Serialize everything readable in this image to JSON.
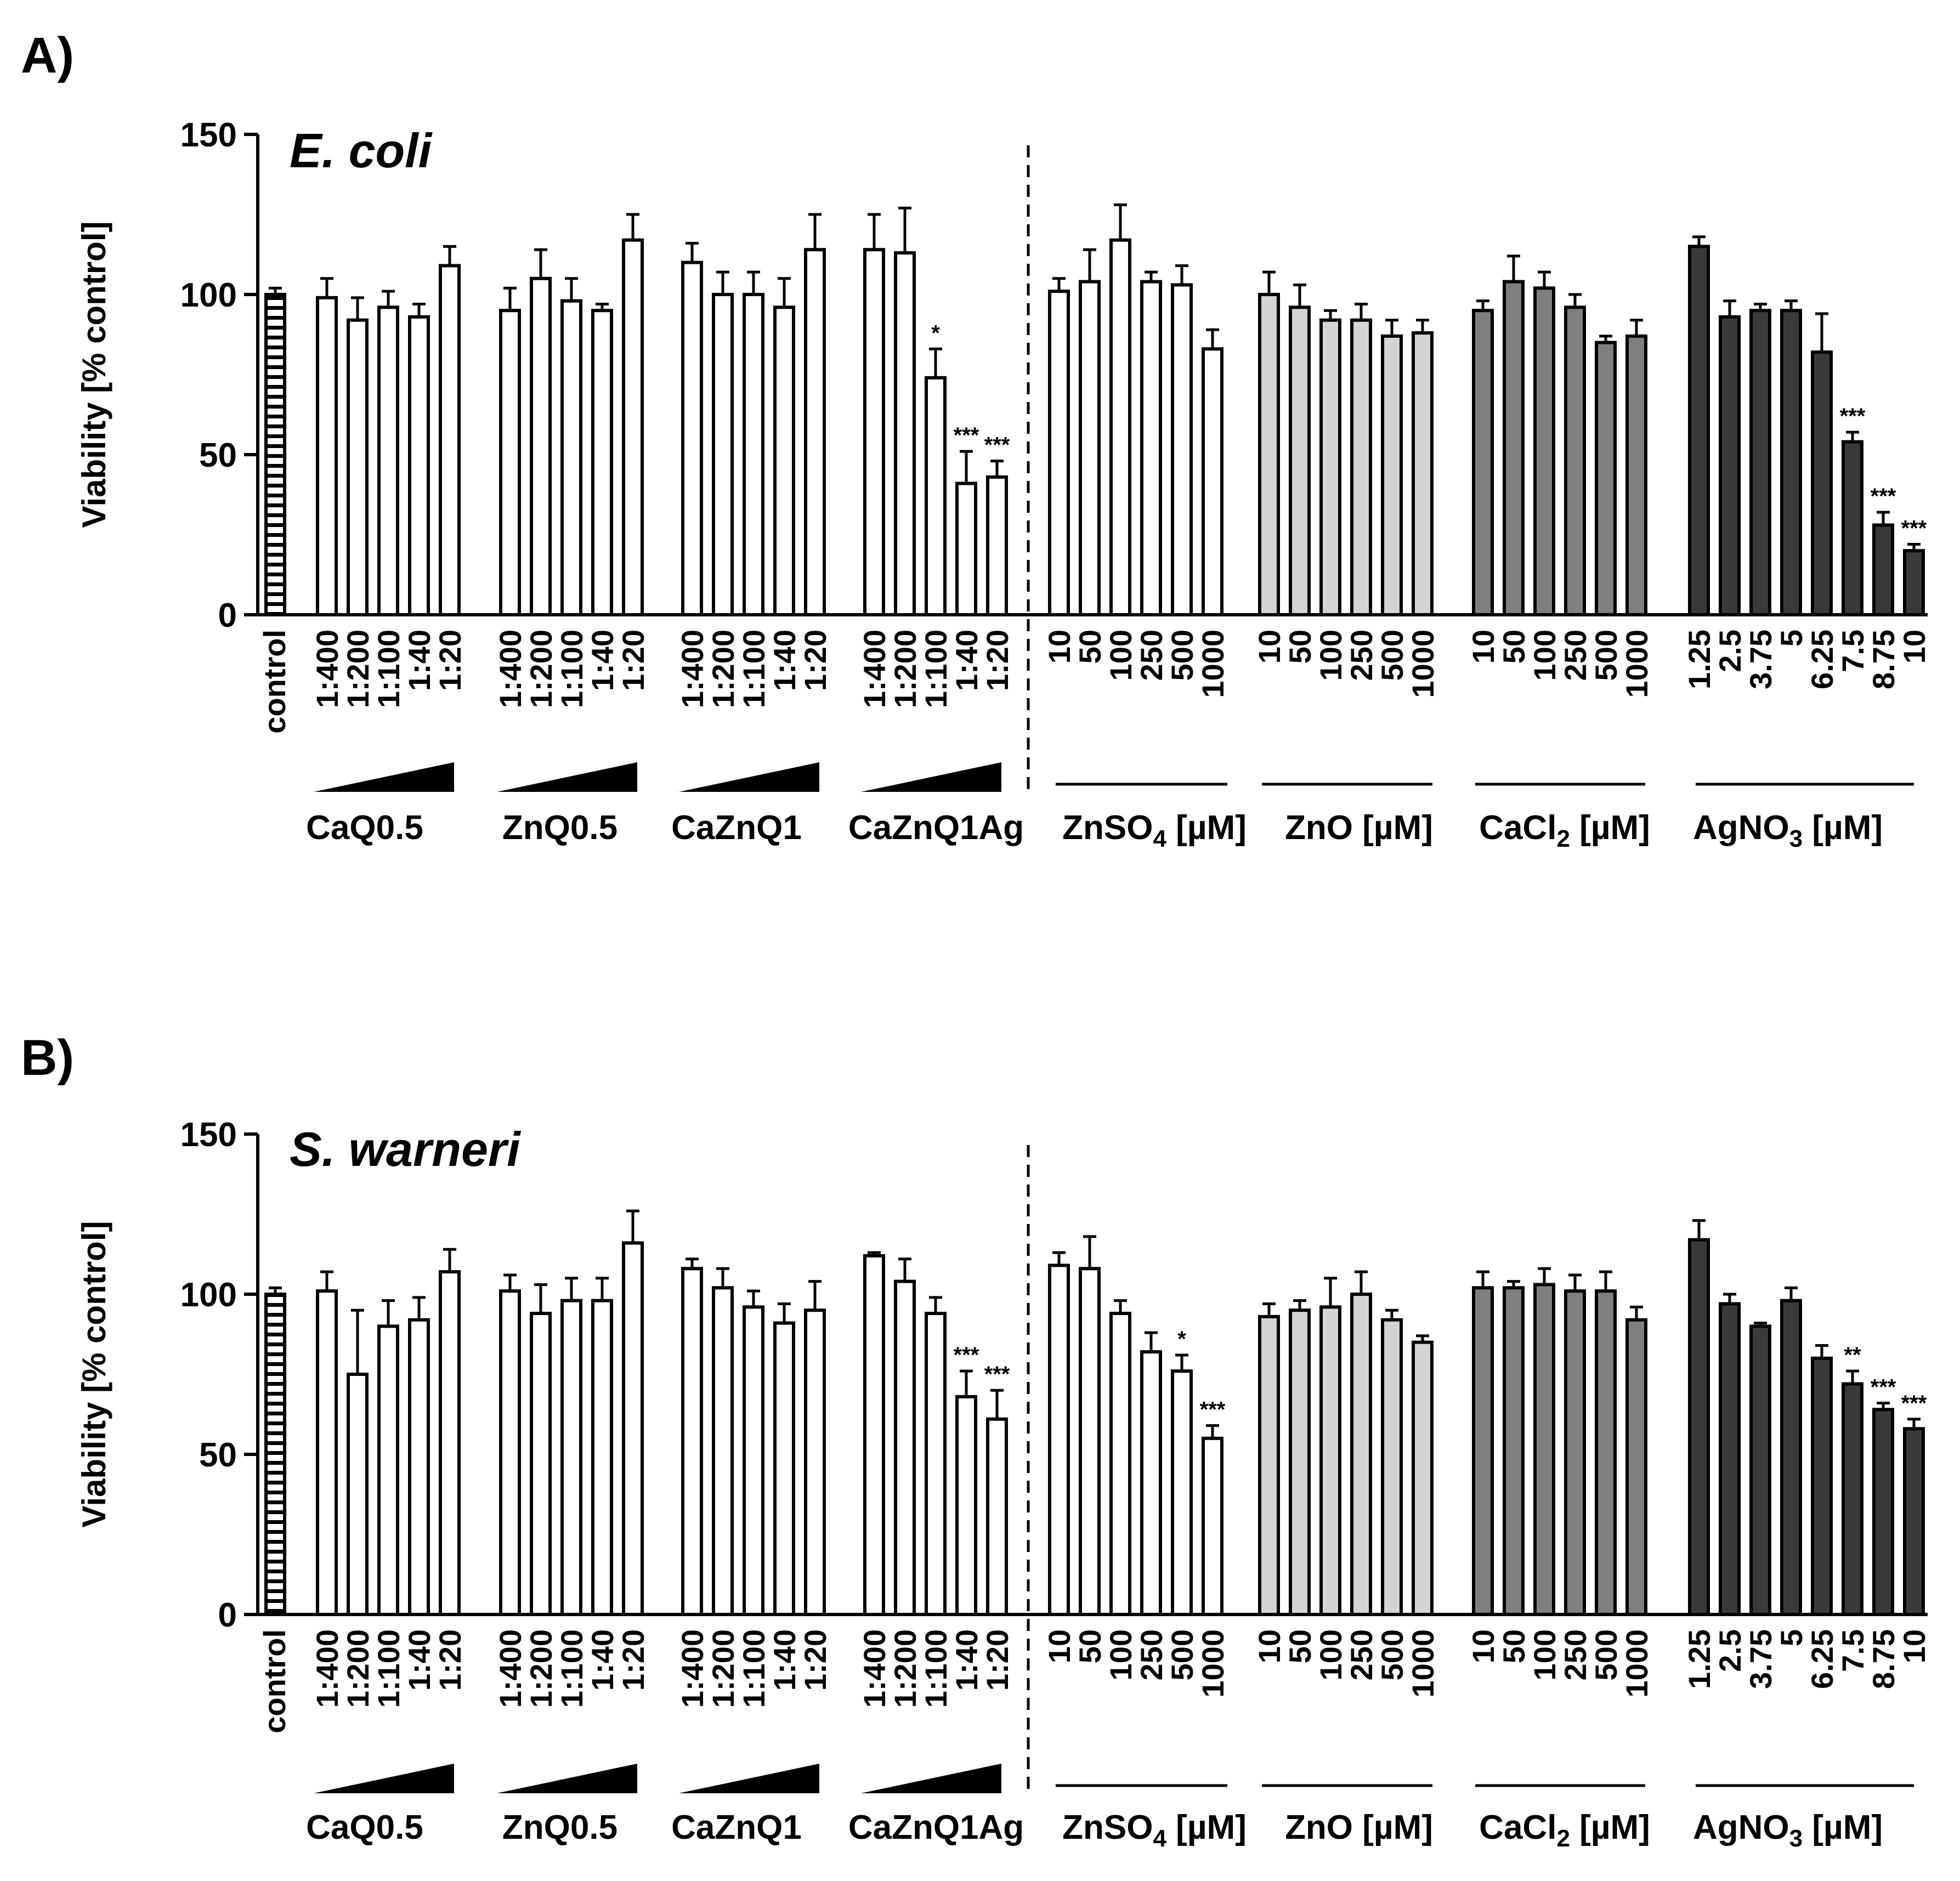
{
  "figure": {
    "panels": [
      "A)",
      "B)"
    ]
  },
  "colors": {
    "white": "#ffffff",
    "light": "#d4d4d4",
    "mid": "#7f7f7f",
    "dark": "#3a3a3a",
    "ink": "#000000"
  },
  "chart_data": [
    {
      "type": "bar",
      "panel": "A)",
      "title": "E. coli",
      "ylabel": "Viability [% control]",
      "xlabel": "",
      "ylim": [
        0,
        150
      ],
      "yticks": [
        0,
        50,
        100,
        150
      ],
      "control": {
        "label": "control",
        "value": 100,
        "error": 2
      },
      "groups": [
        {
          "name": "CaQ0.5",
          "sub": "",
          "color": "white",
          "indicator": "wedge",
          "labels": [
            "1:400",
            "1:200",
            "1:100",
            "1:40",
            "1:20"
          ],
          "values": [
            99,
            92,
            96,
            93,
            109
          ],
          "errors": [
            6,
            7,
            5,
            4,
            6
          ],
          "sig": [
            "",
            "",
            "",
            "",
            ""
          ]
        },
        {
          "name": "ZnQ0.5",
          "sub": "",
          "color": "white",
          "indicator": "wedge",
          "labels": [
            "1:400",
            "1:200",
            "1:100",
            "1:40",
            "1:20"
          ],
          "values": [
            95,
            105,
            98,
            95,
            117
          ],
          "errors": [
            7,
            9,
            7,
            2,
            8
          ],
          "sig": [
            "",
            "",
            "",
            "",
            ""
          ]
        },
        {
          "name": "CaZnQ1",
          "sub": "",
          "color": "white",
          "indicator": "wedge",
          "labels": [
            "1:400",
            "1:200",
            "1:100",
            "1:40",
            "1:20"
          ],
          "values": [
            110,
            100,
            100,
            96,
            114
          ],
          "errors": [
            6,
            7,
            7,
            9,
            11
          ],
          "sig": [
            "",
            "",
            "",
            "",
            ""
          ]
        },
        {
          "name": "CaZnQ1Ag",
          "sub": "",
          "color": "white",
          "indicator": "wedge",
          "labels": [
            "1:400",
            "1:200",
            "1:100",
            "1:40",
            "1:20"
          ],
          "values": [
            114,
            113,
            74,
            41,
            43
          ],
          "errors": [
            11,
            14,
            9,
            10,
            5
          ],
          "sig": [
            "",
            "",
            "*",
            "***",
            "***"
          ]
        },
        {
          "name": "ZnSO",
          "sub": "4",
          "unit": " [µM]",
          "color": "white",
          "indicator": "line",
          "labels": [
            "10",
            "50",
            "100",
            "250",
            "500",
            "1000"
          ],
          "values": [
            101,
            104,
            117,
            104,
            103,
            83
          ],
          "errors": [
            4,
            10,
            11,
            3,
            6,
            6
          ],
          "sig": [
            "",
            "",
            "",
            "",
            "",
            ""
          ]
        },
        {
          "name": "ZnO",
          "sub": "",
          "unit": " [µM]",
          "color": "light",
          "indicator": "line",
          "labels": [
            "10",
            "50",
            "100",
            "250",
            "500",
            "1000"
          ],
          "values": [
            100,
            96,
            92,
            92,
            87,
            88
          ],
          "errors": [
            7,
            7,
            3,
            5,
            5,
            4
          ],
          "sig": [
            "",
            "",
            "",
            "",
            "",
            ""
          ]
        },
        {
          "name": "CaCl",
          "sub": "2",
          "unit": " [µM]",
          "color": "mid",
          "indicator": "line",
          "labels": [
            "10",
            "50",
            "100",
            "250",
            "500",
            "1000"
          ],
          "values": [
            95,
            104,
            102,
            96,
            85,
            87
          ],
          "errors": [
            3,
            8,
            5,
            4,
            2,
            5
          ],
          "sig": [
            "",
            "",
            "",
            "",
            "",
            ""
          ]
        },
        {
          "name": "AgNO",
          "sub": "3",
          "unit": " [µM]",
          "color": "dark",
          "indicator": "line",
          "labels": [
            "1.25",
            "2.5",
            "3.75",
            "5",
            "6.25",
            "7.5",
            "8.75",
            "10"
          ],
          "values": [
            115,
            93,
            95,
            95,
            82,
            54,
            28,
            20
          ],
          "errors": [
            3,
            5,
            2,
            3,
            12,
            3,
            4,
            2
          ],
          "sig": [
            "",
            "",
            "",
            "",
            "",
            "***",
            "***",
            "***"
          ]
        }
      ]
    },
    {
      "type": "bar",
      "panel": "B)",
      "title": "S. warneri",
      "ylabel": "Viability [% control]",
      "xlabel": "",
      "ylim": [
        0,
        150
      ],
      "yticks": [
        0,
        50,
        100,
        150
      ],
      "control": {
        "label": "control",
        "value": 100,
        "error": 2
      },
      "groups": [
        {
          "name": "CaQ0.5",
          "sub": "",
          "color": "white",
          "indicator": "wedge",
          "labels": [
            "1:400",
            "1:200",
            "1:100",
            "1:40",
            "1:20"
          ],
          "values": [
            101,
            75,
            90,
            92,
            107
          ],
          "errors": [
            6,
            20,
            8,
            7,
            7
          ],
          "sig": [
            "",
            "",
            "",
            "",
            ""
          ]
        },
        {
          "name": "ZnQ0.5",
          "sub": "",
          "color": "white",
          "indicator": "wedge",
          "labels": [
            "1:400",
            "1:200",
            "1:100",
            "1:40",
            "1:20"
          ],
          "values": [
            101,
            94,
            98,
            98,
            116
          ],
          "errors": [
            5,
            9,
            7,
            7,
            10
          ],
          "sig": [
            "",
            "",
            "",
            "",
            ""
          ]
        },
        {
          "name": "CaZnQ1",
          "sub": "",
          "color": "white",
          "indicator": "wedge",
          "labels": [
            "1:400",
            "1:200",
            "1:100",
            "1:40",
            "1:20"
          ],
          "values": [
            108,
            102,
            96,
            91,
            95
          ],
          "errors": [
            3,
            6,
            5,
            6,
            9
          ],
          "sig": [
            "",
            "",
            "",
            "",
            ""
          ]
        },
        {
          "name": "CaZnQ1Ag",
          "sub": "",
          "color": "white",
          "indicator": "wedge",
          "labels": [
            "1:400",
            "1:200",
            "1:100",
            "1:40",
            "1:20"
          ],
          "values": [
            112,
            104,
            94,
            68,
            61
          ],
          "errors": [
            1,
            7,
            5,
            8,
            9
          ],
          "sig": [
            "",
            "",
            "",
            "***",
            "***"
          ]
        },
        {
          "name": "ZnSO",
          "sub": "4",
          "unit": " [µM]",
          "color": "white",
          "indicator": "line",
          "labels": [
            "10",
            "50",
            "100",
            "250",
            "500",
            "1000"
          ],
          "values": [
            109,
            108,
            94,
            82,
            76,
            55
          ],
          "errors": [
            4,
            10,
            4,
            6,
            5,
            4
          ],
          "sig": [
            "",
            "",
            "",
            "",
            "*",
            "***"
          ]
        },
        {
          "name": "ZnO",
          "sub": "",
          "unit": " [µM]",
          "color": "light",
          "indicator": "line",
          "labels": [
            "10",
            "50",
            "100",
            "250",
            "500",
            "1000"
          ],
          "values": [
            93,
            95,
            96,
            100,
            92,
            85
          ],
          "errors": [
            4,
            3,
            9,
            7,
            3,
            2
          ],
          "sig": [
            "",
            "",
            "",
            "",
            "",
            ""
          ]
        },
        {
          "name": "CaCl",
          "sub": "2",
          "unit": " [µM]",
          "color": "mid",
          "indicator": "line",
          "labels": [
            "10",
            "50",
            "100",
            "250",
            "500",
            "1000"
          ],
          "values": [
            102,
            102,
            103,
            101,
            101,
            92
          ],
          "errors": [
            5,
            2,
            5,
            5,
            6,
            4
          ],
          "sig": [
            "",
            "",
            "",
            "",
            "",
            ""
          ]
        },
        {
          "name": "AgNO",
          "sub": "3",
          "unit": " [µM]",
          "color": "dark",
          "indicator": "line",
          "labels": [
            "1.25",
            "2.5",
            "3.75",
            "5",
            "6.25",
            "7.5",
            "8.75",
            "10"
          ],
          "values": [
            117,
            97,
            90,
            98,
            80,
            72,
            64,
            58
          ],
          "errors": [
            6,
            3,
            1,
            4,
            4,
            4,
            2,
            3
          ],
          "sig": [
            "",
            "",
            "",
            "",
            "",
            "**",
            "***",
            "***"
          ]
        }
      ]
    }
  ]
}
